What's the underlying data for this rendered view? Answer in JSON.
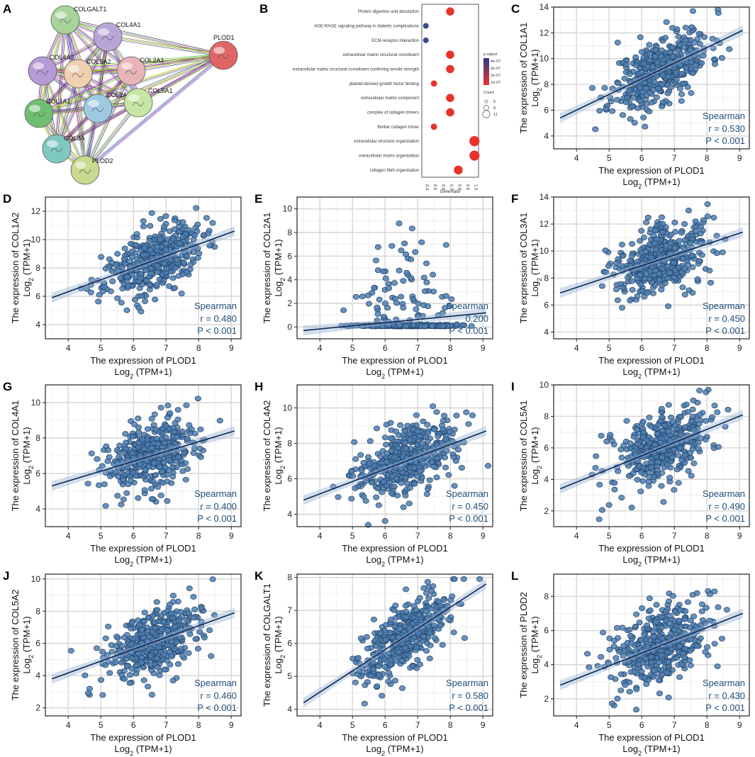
{
  "figure": {
    "panel_letters": [
      "A",
      "B",
      "C",
      "D",
      "E",
      "F",
      "G",
      "H",
      "I",
      "J",
      "K",
      "L"
    ]
  },
  "network": {
    "nodes": [
      {
        "id": "COLGALT1",
        "color": "#a8d49c"
      },
      {
        "id": "COL4A1",
        "color": "#b8a6d8"
      },
      {
        "id": "COL4A2",
        "color": "#b69ad6"
      },
      {
        "id": "COL5A2",
        "color": "#f0d0b0"
      },
      {
        "id": "COL2A1",
        "color": "#e8b4b8"
      },
      {
        "id": "PLOD1",
        "color": "#e06666"
      },
      {
        "id": "COL1A1",
        "color": "#6fbf73"
      },
      {
        "id": "COL1A2",
        "color": "#9ecae1"
      },
      {
        "id": "COL5A1",
        "color": "#c7e6a3"
      },
      {
        "id": "COL3A",
        "color": "#7fc8c0"
      },
      {
        "id": "PLOD2",
        "color": "#c9d98f"
      }
    ],
    "edge_colors": [
      "#3cbf3c",
      "#d4c400",
      "#2a2ad0",
      "#d43cd4",
      "#222222",
      "#6ab0e8",
      "#c43c3c"
    ]
  },
  "go_enrichment": {
    "type": "dot",
    "terms": [
      "Protein digestion and absorption",
      "AGE-RAGE signaling pathway in diabetic complications",
      "ECM-receptor interaction",
      "extracellular matrix structural constituent",
      "extracellular matrix structural constituent conferring tensile strength",
      "platelet-derived growth factor binding",
      "extracellular matrix component",
      "complex of collagen trimers",
      "fibrillar collagen trimer",
      "extracellular structure organization",
      "extracellular matrix organization",
      "collagen fibril organization"
    ],
    "gene_ratio": [
      0.7,
      0.4,
      0.4,
      0.7,
      0.7,
      0.5,
      0.7,
      0.7,
      0.5,
      1.0,
      1.0,
      0.8
    ],
    "count": [
      8,
      4,
      4,
      8,
      8,
      5,
      8,
      8,
      5,
      11,
      11,
      9
    ],
    "x_ticks": [
      "0.4",
      "0.5",
      "0.6",
      "0.7",
      "0.8",
      "0.9",
      "1.0"
    ],
    "x_range": [
      0.35,
      1.05
    ],
    "xlabel": "GeneRatio",
    "legend": {
      "padj_title": "p.adjust",
      "padj_labels": [
        "4e-07",
        "3e-07",
        "2e-07",
        "1e-07"
      ],
      "count_title": "Count",
      "count_labels": [
        "5",
        "8",
        "11"
      ]
    }
  },
  "chart_data": [
    {
      "type": "scatter",
      "letter": "C",
      "gene": "COL1A1",
      "xlabel": "The expression of PLOD1",
      "xlabel_log": "Log",
      "xlabel_sub": "2",
      "xlabel_tail": " (TPM+1)",
      "ylabel": "The expression of COL1A1",
      "ylabel_log": "Log",
      "ylabel_sub": "2",
      "ylabel_tail": " (TPM+1)",
      "xlim": [
        3.3,
        9.3
      ],
      "ylim": [
        3,
        14
      ],
      "x_ticks": [
        4,
        5,
        6,
        7,
        8,
        9
      ],
      "y_ticks": [
        4,
        6,
        8,
        10,
        12,
        14
      ],
      "spearman_label": "Spearman",
      "r_label": "r = 0.530",
      "p_label": "P < 0.001",
      "r": 0.53,
      "fit": {
        "x": [
          3.5,
          9.1
        ],
        "y": [
          5.4,
          12.2
        ]
      },
      "center": [
        6.6,
        9.5
      ],
      "spread": [
        0.75,
        1.5
      ],
      "seed": 11
    },
    {
      "type": "scatter",
      "letter": "D",
      "gene": "COL1A2",
      "xlabel": "The expression of PLOD1",
      "xlabel_log": "Log",
      "xlabel_sub": "2",
      "xlabel_tail": " (TPM+1)",
      "ylabel": "The expression of COL1A2",
      "ylabel_log": "Log",
      "ylabel_sub": "2",
      "ylabel_tail": " (TPM+1)",
      "xlim": [
        3.3,
        9.3
      ],
      "ylim": [
        3,
        13
      ],
      "x_ticks": [
        4,
        5,
        6,
        7,
        8,
        9
      ],
      "y_ticks": [
        4,
        6,
        8,
        10,
        12
      ],
      "spearman_label": "Spearman",
      "r_label": "r = 0.480",
      "p_label": "P < 0.001",
      "r": 0.48,
      "fit": {
        "x": [
          3.5,
          9.1
        ],
        "y": [
          5.9,
          10.6
        ]
      },
      "center": [
        6.6,
        8.4
      ],
      "spread": [
        0.75,
        1.3
      ],
      "seed": 23
    },
    {
      "type": "scatter",
      "letter": "E",
      "gene": "COL2A1",
      "xlabel": "The expression of PLOD1",
      "xlabel_log": "Log",
      "xlabel_sub": "2",
      "xlabel_tail": " (TPM+1)",
      "ylabel": "The expression of COL2A1",
      "ylabel_log": "Log",
      "ylabel_sub": "2",
      "ylabel_tail": " (TPM+1)",
      "xlim": [
        3.3,
        9.3
      ],
      "ylim": [
        -1,
        11
      ],
      "x_ticks": [
        4,
        5,
        6,
        7,
        8,
        9
      ],
      "y_ticks": [
        0,
        2,
        4,
        6,
        8,
        10
      ],
      "spearman_label": "Spearman",
      "r_label": "0.200",
      "p_label": "P < 0.001",
      "r": 0.2,
      "fit": {
        "x": [
          3.5,
          9.1
        ],
        "y": [
          -0.3,
          1.2
        ]
      },
      "center": [
        6.6,
        0.1
      ],
      "spread": [
        0.75,
        0.15
      ],
      "seed": 37,
      "skewed": true
    },
    {
      "type": "scatter",
      "letter": "F",
      "gene": "COL3A1",
      "xlabel": "The expression of PLOD1",
      "xlabel_log": "Log",
      "xlabel_sub": "2",
      "xlabel_tail": " (TPM+1)",
      "ylabel": "The expression of COL3A1",
      "ylabel_log": "Log",
      "ylabel_sub": "2",
      "ylabel_tail": " (TPM+1)",
      "xlim": [
        3.3,
        9.3
      ],
      "ylim": [
        3.5,
        14
      ],
      "x_ticks": [
        4,
        5,
        6,
        7,
        8,
        9
      ],
      "y_ticks": [
        4,
        6,
        8,
        10,
        12,
        14
      ],
      "spearman_label": "Spearman",
      "r_label": "r = 0.450",
      "p_label": "P < 0.001",
      "r": 0.45,
      "fit": {
        "x": [
          3.5,
          9.1
        ],
        "y": [
          6.9,
          11.4
        ]
      },
      "center": [
        6.6,
        9.4
      ],
      "spread": [
        0.75,
        1.5
      ],
      "seed": 41
    },
    {
      "type": "scatter",
      "letter": "G",
      "gene": "COL4A1",
      "xlabel": "The expression of PLOD1",
      "xlabel_log": "Log",
      "xlabel_sub": "2",
      "xlabel_tail": " (TPM+1)",
      "ylabel": "The expression of COL4A1",
      "ylabel_log": "Log",
      "ylabel_sub": "2",
      "ylabel_tail": " (TPM+1)",
      "xlim": [
        3.3,
        9.3
      ],
      "ylim": [
        3,
        11
      ],
      "x_ticks": [
        4,
        5,
        6,
        7,
        8,
        9
      ],
      "y_ticks": [
        4,
        6,
        8,
        10
      ],
      "spearman_label": "Spearman",
      "r_label": "r = 0.400",
      "p_label": "P < 0.001",
      "r": 0.4,
      "fit": {
        "x": [
          3.5,
          9.1
        ],
        "y": [
          5.3,
          8.4
        ]
      },
      "center": [
        6.6,
        7.1
      ],
      "spread": [
        0.75,
        1.1
      ],
      "seed": 53
    },
    {
      "type": "scatter",
      "letter": "H",
      "gene": "COL4A2",
      "xlabel": "The expression of PLOD1",
      "xlabel_log": "Log",
      "xlabel_sub": "2",
      "xlabel_tail": " (TPM+1)",
      "ylabel": "The expression of COL4A2",
      "ylabel_log": "Log",
      "ylabel_sub": "2",
      "ylabel_tail": " (TPM+1)",
      "xlim": [
        3.3,
        9.3
      ],
      "ylim": [
        3.3,
        11.3
      ],
      "x_ticks": [
        4,
        5,
        6,
        7,
        8,
        9
      ],
      "y_ticks": [
        4,
        6,
        8,
        10
      ],
      "spearman_label": "Spearman",
      "r_label": "r = 0.450",
      "p_label": "P < 0.001",
      "r": 0.45,
      "fit": {
        "x": [
          3.5,
          9.1
        ],
        "y": [
          4.8,
          8.7
        ]
      },
      "center": [
        6.6,
        7.1
      ],
      "spread": [
        0.75,
        1.1
      ],
      "seed": 67
    },
    {
      "type": "scatter",
      "letter": "I",
      "gene": "COL5A1",
      "xlabel": "The expression of PLOD1",
      "xlabel_log": "Log",
      "xlabel_sub": "2",
      "xlabel_tail": " (TPM+1)",
      "ylabel": "The expression of COL5A1",
      "ylabel_log": "Log",
      "ylabel_sub": "2",
      "ylabel_tail": " (TPM+1)",
      "xlim": [
        3.3,
        9.3
      ],
      "ylim": [
        1,
        10
      ],
      "x_ticks": [
        4,
        5,
        6,
        7,
        8,
        9
      ],
      "y_ticks": [
        2,
        4,
        6,
        8,
        10
      ],
      "spearman_label": "Spearman",
      "r_label": "r = 0.490",
      "p_label": "P < 0.001",
      "r": 0.49,
      "fit": {
        "x": [
          3.5,
          9.1
        ],
        "y": [
          3.4,
          8.1
        ]
      },
      "center": [
        6.6,
        6.0
      ],
      "spread": [
        0.75,
        1.3
      ],
      "seed": 71
    },
    {
      "type": "scatter",
      "letter": "J",
      "gene": "COL5A2",
      "xlabel": "The expression of PLOD1",
      "xlabel_log": "Log",
      "xlabel_sub": "2",
      "xlabel_tail": " (TPM+1)",
      "ylabel": "The expression of COL5A2",
      "ylabel_log": "Log",
      "ylabel_sub": "2",
      "ylabel_tail": " (TPM+1)",
      "xlim": [
        3.3,
        9.3
      ],
      "ylim": [
        1.5,
        10.3
      ],
      "x_ticks": [
        4,
        5,
        6,
        7,
        8,
        9
      ],
      "y_ticks": [
        2,
        4,
        6,
        8,
        10
      ],
      "spearman_label": "Spearman",
      "r_label": "r = 0.460",
      "p_label": "P < 0.001",
      "r": 0.46,
      "fit": {
        "x": [
          3.5,
          9.1
        ],
        "y": [
          3.8,
          7.9
        ]
      },
      "center": [
        6.6,
        6.0
      ],
      "spread": [
        0.75,
        1.2
      ],
      "seed": 83
    },
    {
      "type": "scatter",
      "letter": "K",
      "gene": "COLGALT1",
      "xlabel": "The expression of PLOD1",
      "xlabel_log": "Log",
      "xlabel_sub": "2",
      "xlabel_tail": " (TPM+1)",
      "ylabel": "The expression of COLGALT1",
      "ylabel_log": "Log",
      "ylabel_sub": "2",
      "ylabel_tail": " (TPM+1)",
      "xlim": [
        3.3,
        9.3
      ],
      "ylim": [
        3.8,
        8.1
      ],
      "x_ticks": [
        4,
        5,
        6,
        7,
        8,
        9
      ],
      "y_ticks": [
        4,
        5,
        6,
        7,
        8
      ],
      "spearman_label": "Spearman",
      "r_label": "r = 0.580",
      "p_label": "P < 0.001",
      "r": 0.58,
      "fit": {
        "x": [
          3.5,
          9.1
        ],
        "y": [
          4.2,
          7.8
        ]
      },
      "center": [
        6.6,
        6.1
      ],
      "spread": [
        0.75,
        0.6
      ],
      "seed": 97
    },
    {
      "type": "scatter",
      "letter": "L",
      "gene": "PLOD2",
      "xlabel": "The expression of PLOD1",
      "xlabel_log": "Log",
      "xlabel_sub": "2",
      "xlabel_tail": " (TPM+1)",
      "ylabel": "The expression of PLOD2",
      "ylabel_log": "Log",
      "ylabel_sub": "2",
      "ylabel_tail": " (TPM+1)",
      "xlim": [
        3.3,
        9.3
      ],
      "ylim": [
        1,
        9.3
      ],
      "x_ticks": [
        4,
        5,
        6,
        7,
        8,
        9
      ],
      "y_ticks": [
        2,
        4,
        6,
        8
      ],
      "spearman_label": "Spearman",
      "r_label": "r = 0.430",
      "p_label": "P < 0.001",
      "r": 0.43,
      "fit": {
        "x": [
          3.5,
          9.1
        ],
        "y": [
          2.8,
          7.0
        ]
      },
      "center": [
        6.6,
        5.1
      ],
      "spread": [
        0.75,
        1.3
      ],
      "seed": 109
    }
  ]
}
